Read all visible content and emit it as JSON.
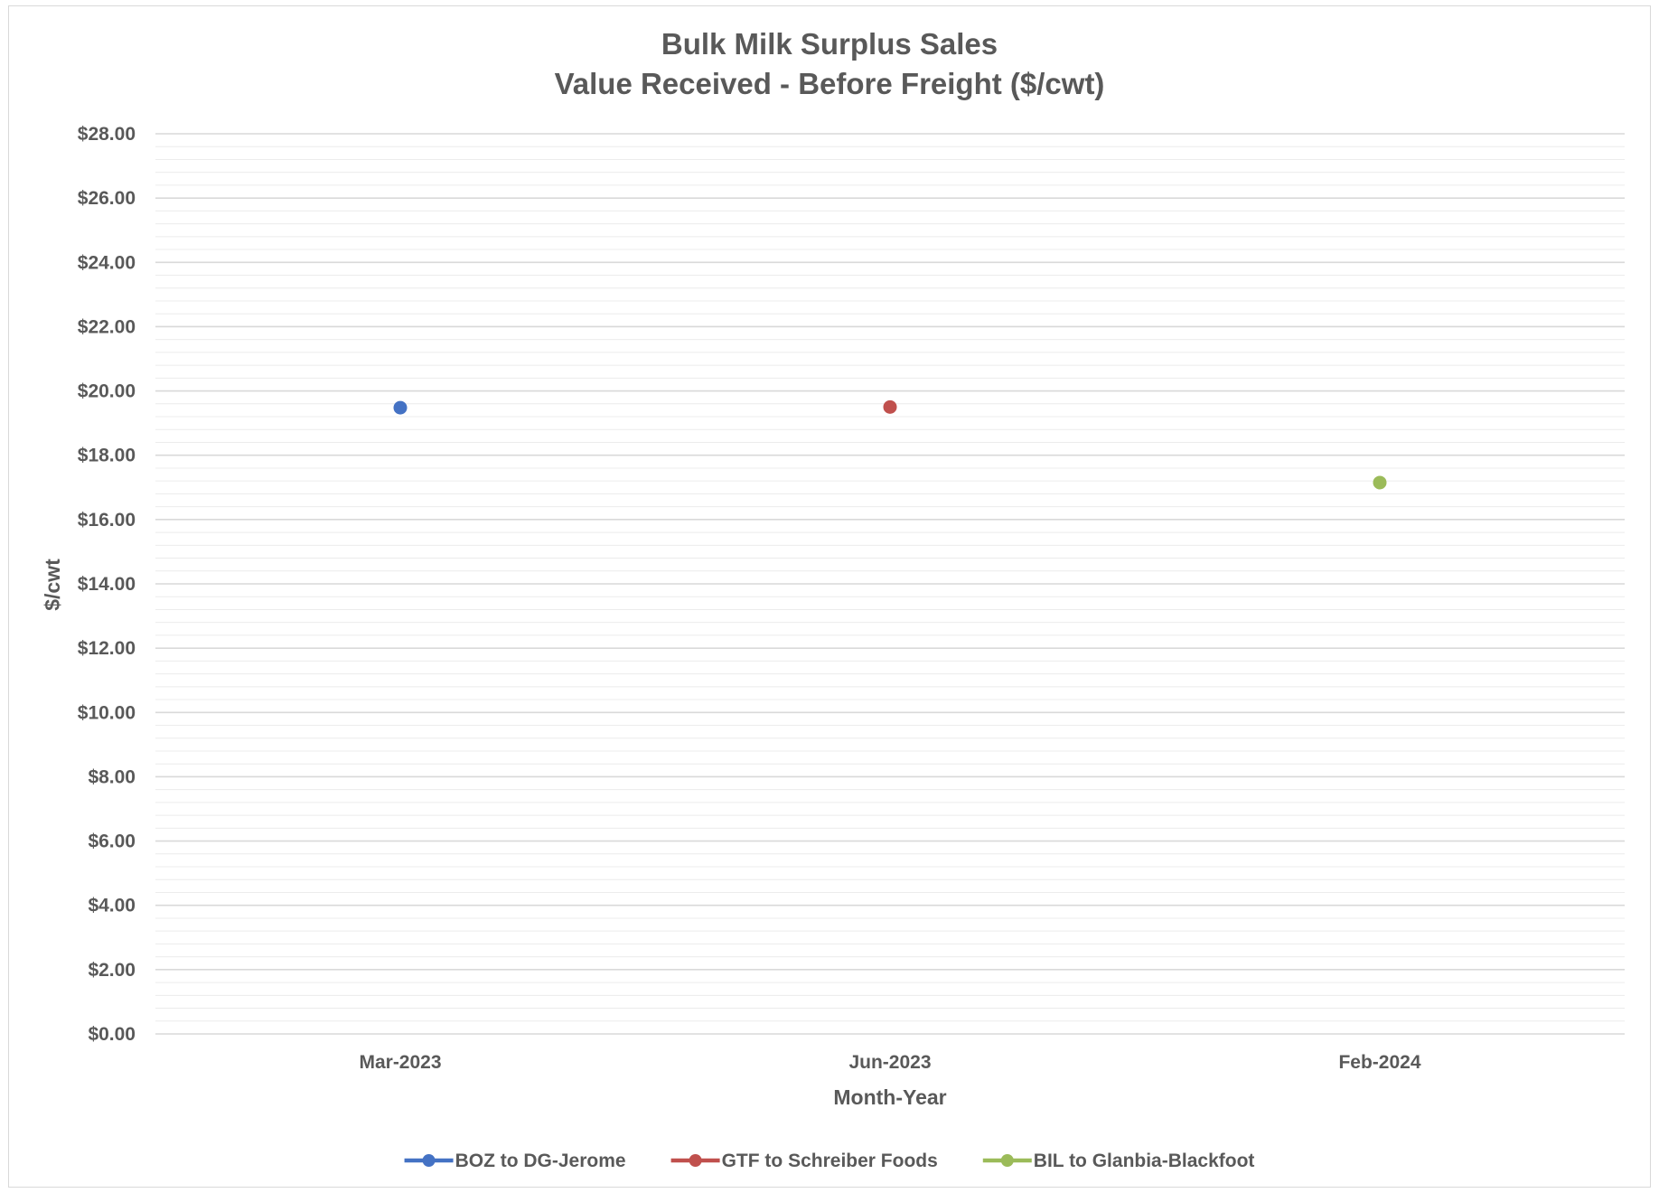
{
  "chart_data": {
    "type": "line",
    "title": [
      "Bulk Milk Surplus Sales",
      "Value Received - Before Freight ($/cwt)"
    ],
    "xlabel": "Month-Year",
    "ylabel": "$/cwt",
    "categories": [
      "Mar-2023",
      "Jun-2023",
      "Feb-2024"
    ],
    "ylim": [
      0,
      28
    ],
    "y_major_step": 2,
    "y_minor_step": 0.4,
    "y_tick_labels": [
      "$0.00",
      "$2.00",
      "$4.00",
      "$6.00",
      "$8.00",
      "$10.00",
      "$12.00",
      "$14.00",
      "$16.00",
      "$18.00",
      "$20.00",
      "$22.00",
      "$24.00",
      "$26.00",
      "$28.00"
    ],
    "grid": true,
    "legend_position": "bottom",
    "series": [
      {
        "name": "BOZ to DG-Jerome",
        "color": "#4472c4",
        "values": [
          19.48,
          null,
          null
        ]
      },
      {
        "name": "GTF to Schreiber Foods",
        "color": "#c0504d",
        "values": [
          null,
          19.5,
          null
        ]
      },
      {
        "name": "BIL to Glanbia-Blackfoot",
        "color": "#9bbb59",
        "values": [
          null,
          null,
          17.15
        ]
      }
    ]
  }
}
